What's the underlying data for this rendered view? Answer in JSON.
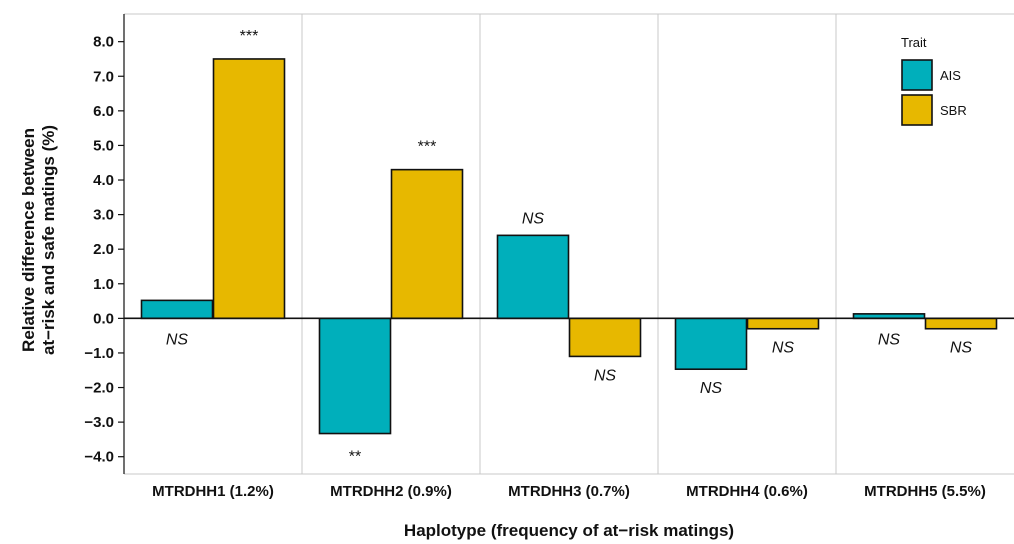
{
  "chart_data": {
    "type": "bar",
    "title": "",
    "xlabel": "Haplotype (frequency of at−risk matings)",
    "ylabel_lines": [
      "Relative difference between",
      "at−risk and safe matings (%)"
    ],
    "ylim": [
      -4.5,
      8.8
    ],
    "yticks": [
      "8.0",
      "7.0",
      "6.0",
      "5.0",
      "4.0",
      "3.0",
      "2.0",
      "1.0",
      "0.0",
      "−1.0",
      "−2.0",
      "−3.0",
      "−4.0"
    ],
    "ytick_values": [
      8,
      7,
      6,
      5,
      4,
      3,
      2,
      1,
      0,
      -1,
      -2,
      -3,
      -4
    ],
    "categories": [
      "MTRDHH1 (1.2%)",
      "MTRDHH2 (0.9%)",
      "MTRDHH3 (0.7%)",
      "MTRDHH4 (0.6%)",
      "MTRDHH5 (5.5%)"
    ],
    "series": [
      {
        "name": "AIS",
        "color": "#00AFBB",
        "values": [
          0.52,
          -3.33,
          2.4,
          -1.47,
          0.13
        ],
        "significance": [
          "NS",
          "**",
          "NS",
          "NS",
          "NS"
        ]
      },
      {
        "name": "SBR",
        "color": "#E7B800",
        "values": [
          7.5,
          4.3,
          -1.1,
          -0.3,
          -0.3
        ],
        "significance": [
          "***",
          "***",
          "NS",
          "NS",
          "NS"
        ]
      }
    ],
    "legend": {
      "title": "Trait",
      "position": "top-right"
    },
    "grid": "vertical separators between categories"
  }
}
